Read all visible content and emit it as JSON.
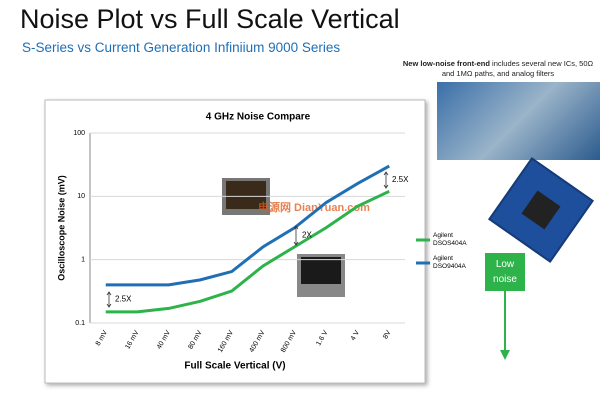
{
  "slide": {
    "title": "Noise Plot vs Full Scale Vertical",
    "subtitle": "S-Series vs Current Generation Infiniium 9000 Series",
    "caption_bold": "New low-noise front-end",
    "caption": "includes several new ICs, 50Ω and 1MΩ paths, and analog filters",
    "callout": "Low noise",
    "watermark": "电源网 DianYuan.com"
  },
  "chart_data": {
    "type": "line",
    "title": "4 GHz Noise Compare",
    "x_label": "Full Scale Vertical (V)",
    "y_label": "Oscilloscope Noise (mV)",
    "categories": [
      "8 mV",
      "16 mV",
      "40 mV",
      "80 mV",
      "160 mV",
      "400 mV",
      "800 mV",
      "1.6 V",
      "4 V",
      "8V"
    ],
    "series": [
      {
        "name": "Agilent DSOS404A",
        "color": "#2db34a",
        "values": [
          0.15,
          0.15,
          0.17,
          0.22,
          0.32,
          0.8,
          1.6,
          3.2,
          7,
          12
        ]
      },
      {
        "name": "Agilent DSO9404A",
        "color": "#1f6fb5",
        "values": [
          0.4,
          0.4,
          0.4,
          0.48,
          0.65,
          1.6,
          3.2,
          8,
          16,
          30
        ]
      }
    ],
    "ylim": [
      0.1,
      100
    ],
    "yticks": [
      0.1,
      1,
      10,
      100
    ],
    "log_y": true,
    "grid": true,
    "annotations": [
      "2.5X",
      "2X",
      "2.5X"
    ]
  }
}
